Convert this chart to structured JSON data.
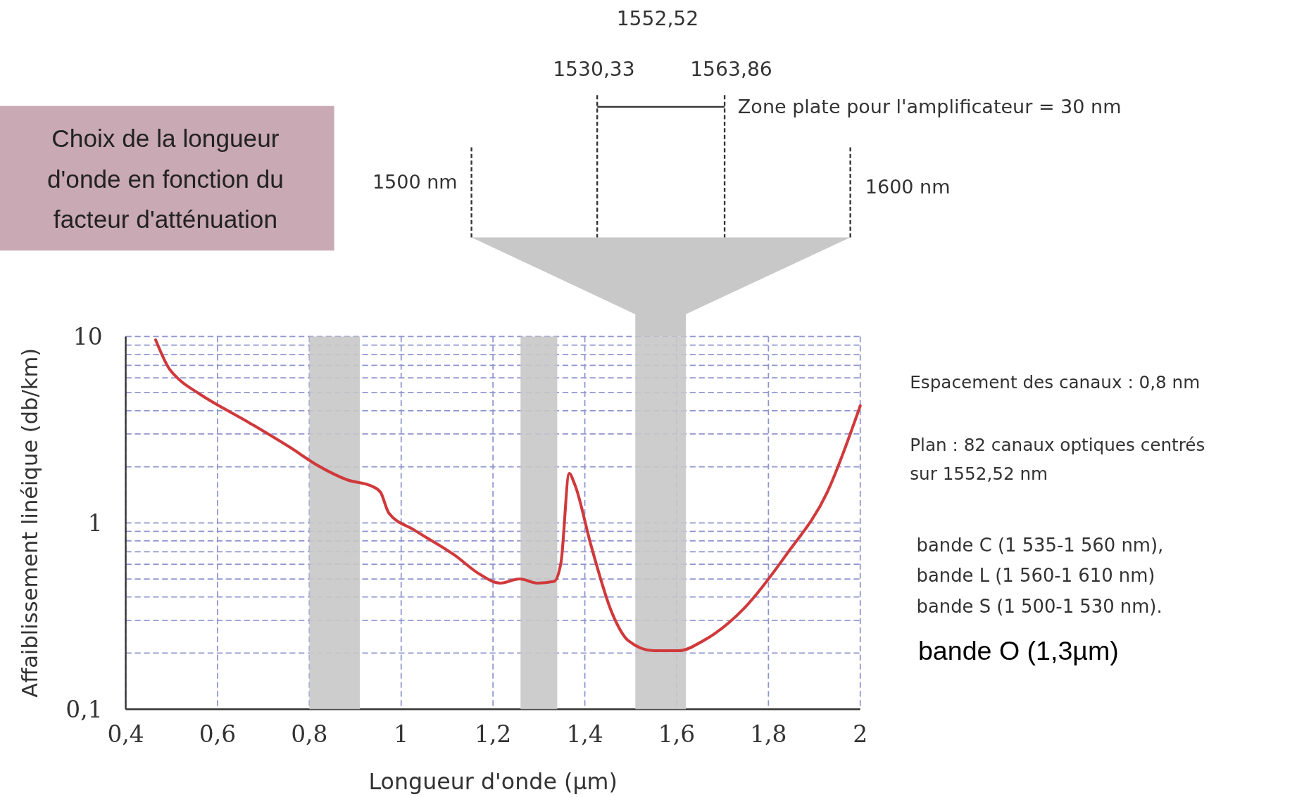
{
  "chart_data": {
    "type": "line",
    "title": "Choix de la longueur d'onde en fonction du facteur d'atténuation",
    "xlabel": "Longueur d'onde (µm)",
    "ylabel": "Affaiblissement linéique (db/km)",
    "series": [
      {
        "color": "#d0393b",
        "x": [
          0.465,
          0.495,
          0.514,
          0.559,
          0.667,
          0.757,
          0.82,
          0.883,
          0.937,
          0.955,
          0.973,
          1.027,
          1.117,
          1.171,
          1.216,
          1.258,
          1.297,
          1.333,
          1.348,
          1.366,
          1.378,
          1.414,
          1.459,
          1.495,
          1.55,
          1.604,
          1.658,
          1.748,
          1.838,
          1.928,
          2.0
        ],
        "values": [
          9.6,
          6.7,
          5.95,
          4.95,
          3.47,
          2.55,
          2.02,
          1.7,
          1.57,
          1.46,
          1.13,
          0.92,
          0.67,
          0.53,
          0.475,
          0.5,
          0.475,
          0.485,
          0.61,
          1.84,
          1.61,
          0.75,
          0.33,
          0.233,
          0.206,
          0.206,
          0.233,
          0.35,
          0.67,
          1.46,
          4.25
        ]
      }
    ],
    "xlim": [
      0.4,
      2
    ],
    "xticks": [
      {
        "value": 0.4,
        "label": "0,4"
      },
      {
        "value": 0.6,
        "label": "0,6"
      },
      {
        "value": 0.8,
        "label": "0,8"
      },
      1,
      {
        "value": 1.2,
        "label": "1,2"
      },
      {
        "value": 1.4,
        "label": "1,4"
      },
      {
        "value": 1.6,
        "label": "1,6"
      },
      {
        "value": 1.8,
        "label": "1,8"
      },
      2
    ],
    "ylim": [
      0.1,
      10
    ],
    "yticks": [
      {
        "value": 0.1,
        "label": "0,1"
      },
      {
        "value": 0.2,
        "label": null
      },
      {
        "value": 0.3,
        "label": null
      },
      {
        "value": 0.4,
        "label": null
      },
      {
        "value": 0.5,
        "label": null
      },
      {
        "value": 0.6,
        "label": null
      },
      {
        "value": 0.7,
        "label": null
      },
      {
        "value": 0.8,
        "label": null
      },
      {
        "value": 0.9,
        "label": null
      },
      1,
      {
        "value": 2,
        "label": null
      },
      {
        "value": 3,
        "label": null
      },
      {
        "value": 4,
        "label": null
      },
      {
        "value": 5,
        "label": null
      },
      {
        "value": 6,
        "label": null
      },
      {
        "value": 7,
        "label": null
      },
      {
        "value": 8,
        "label": null
      },
      {
        "value": 9,
        "label": null
      },
      10
    ],
    "log": "y",
    "grid": true,
    "line_style": "solid",
    "bands": [
      {
        "axis": "x",
        "from": 0.8,
        "to": 0.91,
        "color": "#c8c8c8"
      },
      {
        "axis": "x",
        "from": 1.26,
        "to": 1.34,
        "color": "#c8c8c8"
      },
      {
        "axis": "x",
        "from": 1.51,
        "to": 1.62,
        "color": "#c8c8c8"
      }
    ],
    "annotations": [
      "1552,52",
      "1530,33",
      "1563,86",
      "Zone plate pour l'amplificateur = 30 nm",
      "1500 nm",
      "1600 nm",
      "Espacement des canaux : 0,8 nm",
      "Plan : 82 canaux optiques centrés",
      "sur 1552,52 nm",
      "bande C  (1 535-1 560 nm),",
      "bande L (1 560-1 610 nm)",
      "bande S (1 500-1 530 nm).",
      "bande O (1,3µm)"
    ]
  }
}
